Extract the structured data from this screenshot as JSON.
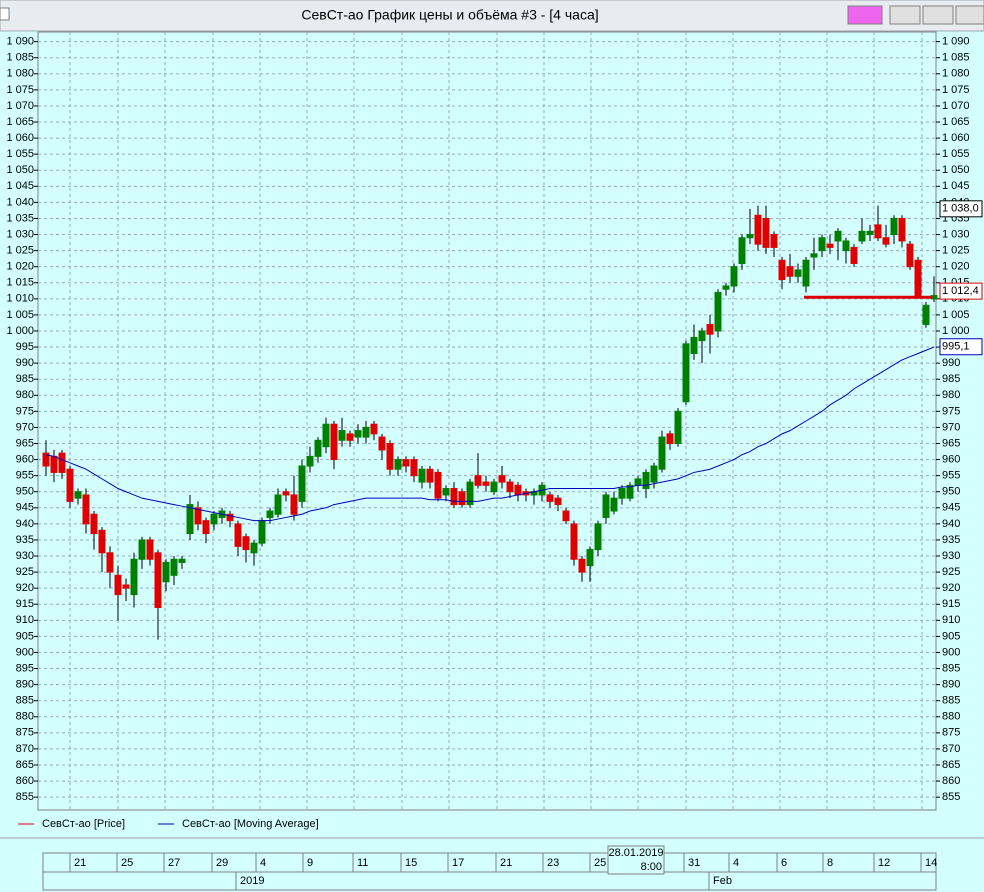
{
  "window_title": "СевСт-ао График цены и объёма #3 - [4 часа]",
  "chart_data": {
    "type": "candlestick",
    "ylim": [
      851,
      1093
    ],
    "yticks": [
      {
        "value": 1090,
        "label": "1 090"
      },
      {
        "value": 1085,
        "label": "1 085"
      },
      {
        "value": 1080,
        "label": "1 080"
      },
      {
        "value": 1075,
        "label": "1 075"
      },
      {
        "value": 1070,
        "label": "1 070"
      },
      {
        "value": 1065,
        "label": "1 065"
      },
      {
        "value": 1060,
        "label": "1 060"
      },
      {
        "value": 1055,
        "label": "1 055"
      },
      {
        "value": 1050,
        "label": "1 050"
      },
      {
        "value": 1045,
        "label": "1 045"
      },
      {
        "value": 1040,
        "label": "1 040"
      },
      {
        "value": 1035,
        "label": "1 035"
      },
      {
        "value": 1030,
        "label": "1 030"
      },
      {
        "value": 1025,
        "label": "1 025"
      },
      {
        "value": 1020,
        "label": "1 020"
      },
      {
        "value": 1015,
        "label": "1 015"
      },
      {
        "value": 1010,
        "label": "1 010"
      },
      {
        "value": 1005,
        "label": "1 005"
      },
      {
        "value": 1000,
        "label": "1 000"
      },
      995,
      990,
      985,
      980,
      975,
      970,
      965,
      960,
      955,
      950,
      945,
      940,
      935,
      930,
      925,
      920,
      915,
      910,
      905,
      900,
      895,
      890,
      885,
      880,
      875,
      870,
      865,
      860,
      855
    ],
    "grid": true,
    "series": [
      {
        "name": "СевСт-ао [Price]",
        "color": "#e00000",
        "up_color": "#008000",
        "down_color": "#e00000",
        "open": [
          962,
          961,
          962,
          957,
          948,
          949,
          943,
          938,
          931,
          924,
          921,
          918,
          929,
          935,
          931,
          922,
          924,
          928,
          937,
          945,
          941,
          940,
          942,
          943,
          940,
          936,
          931,
          934,
          942,
          943,
          950,
          949,
          947,
          958,
          961,
          964,
          971,
          966,
          968,
          967,
          967,
          971,
          967,
          965,
          957,
          960,
          960,
          953,
          957,
          956,
          949,
          951,
          950,
          946,
          955,
          953,
          950,
          955,
          953,
          952,
          950,
          949,
          949,
          949,
          948,
          944,
          940,
          929,
          927,
          932,
          942,
          944,
          948,
          948,
          952,
          951,
          953,
          957,
          968,
          965,
          978,
          993,
          997,
          1002,
          1000,
          1013,
          1014,
          1021,
          1029,
          1036,
          1035,
          1030,
          1022,
          1020,
          1017,
          1014,
          1023,
          1025,
          1027,
          1028,
          1025,
          1026,
          1028,
          1030,
          1033,
          1029,
          1030,
          1035,
          1027,
          1022,
          1002,
          1010
        ],
        "high": [
          966,
          963,
          963,
          958,
          951,
          951,
          944,
          939,
          933,
          927,
          923,
          931,
          936,
          936,
          932,
          929,
          930,
          930,
          949,
          947,
          942,
          944,
          945,
          944,
          941,
          937,
          935,
          942,
          945,
          951,
          951,
          955,
          960,
          964,
          967,
          973,
          972,
          973,
          969,
          971,
          972,
          972,
          968,
          966,
          961,
          961,
          961,
          958,
          958,
          957,
          952,
          953,
          951,
          954,
          962,
          955,
          954,
          958,
          954,
          953,
          951,
          951,
          953,
          950,
          949,
          945,
          941,
          930,
          933,
          941,
          950,
          950,
          952,
          953,
          955,
          957,
          959,
          969,
          969,
          976,
          997,
          1002,
          1001,
          1005,
          1013,
          1015,
          1021,
          1030,
          1038,
          1039,
          1039,
          1031,
          1023,
          1024,
          1021,
          1023,
          1029,
          1030,
          1030,
          1032,
          1029,
          1027,
          1035,
          1033,
          1039,
          1033,
          1036,
          1036,
          1028,
          1023,
          1009,
          1017
        ],
        "low": [
          955,
          953,
          954,
          945,
          946,
          937,
          932,
          925,
          920,
          910,
          916,
          914,
          926,
          927,
          904,
          919,
          921,
          926,
          935,
          938,
          934,
          938,
          940,
          939,
          930,
          928,
          927,
          933,
          940,
          942,
          947,
          941,
          945,
          956,
          959,
          962,
          957,
          964,
          964,
          965,
          965,
          966,
          960,
          955,
          955,
          956,
          953,
          951,
          951,
          947,
          947,
          945,
          945,
          945,
          951,
          950,
          949,
          951,
          948,
          947,
          947,
          946,
          947,
          945,
          944,
          940,
          927,
          922,
          922,
          930,
          940,
          943,
          946,
          947,
          950,
          948,
          951,
          956,
          963,
          964,
          977,
          991,
          990,
          993,
          998,
          1011,
          1012,
          1019,
          1027,
          1025,
          1024,
          1023,
          1013,
          1015,
          1015,
          1012,
          1019,
          1023,
          1024,
          1022,
          1021,
          1020,
          1027,
          1028,
          1028,
          1026,
          1027,
          1026,
          1019,
          1010,
          1001,
          1009
        ],
        "close": [
          958,
          956,
          956,
          947,
          950,
          940,
          937,
          931,
          925,
          918,
          920,
          929,
          935,
          929,
          914,
          928,
          929,
          929,
          946,
          940,
          937,
          943,
          944,
          941,
          933,
          932,
          934,
          941,
          944,
          949,
          949,
          943,
          958,
          961,
          966,
          971,
          960,
          969,
          966,
          969,
          970,
          968,
          963,
          957,
          960,
          958,
          955,
          957,
          953,
          948,
          951,
          946,
          946,
          953,
          952,
          952,
          953,
          953,
          950,
          949,
          949,
          950,
          952,
          947,
          946,
          941,
          929,
          925,
          932,
          940,
          949,
          948,
          951,
          952,
          954,
          956,
          958,
          967,
          965,
          975,
          996,
          998,
          1000,
          999,
          1012,
          1014,
          1020,
          1029,
          1030,
          1027,
          1026,
          1026,
          1016,
          1017,
          1019,
          1022,
          1024,
          1029,
          1026,
          1031,
          1028,
          1021,
          1031,
          1031,
          1029,
          1027,
          1035,
          1028,
          1020,
          1011,
          1008,
          1011
        ]
      },
      {
        "name": "СевСт-ао [Moving Average]",
        "color": "#0000c0",
        "values": [
          961.5,
          961,
          960,
          959,
          958,
          957,
          955.5,
          954,
          952.5,
          951,
          950,
          949,
          948,
          947.5,
          947,
          946.5,
          946,
          945.5,
          945,
          944.5,
          944,
          943.5,
          943,
          942.5,
          942,
          941.5,
          941,
          941,
          941,
          941.5,
          942,
          942.5,
          943,
          944,
          944.5,
          945,
          946,
          946.5,
          947,
          947.5,
          948,
          948,
          948,
          948,
          948,
          948,
          948,
          948,
          947.5,
          947.5,
          947.5,
          947,
          947,
          947,
          947,
          947.5,
          948,
          948,
          948.5,
          949,
          949.5,
          950,
          950.5,
          951,
          951,
          951,
          951,
          951,
          951,
          951,
          951,
          951,
          951.5,
          951.5,
          952,
          952,
          952.5,
          953,
          953.5,
          954,
          955,
          956,
          956.5,
          957,
          958,
          959,
          960,
          961.5,
          962.5,
          964,
          965,
          966.5,
          968,
          969,
          970.5,
          972,
          973.5,
          975,
          977,
          978.5,
          980,
          982,
          983.5,
          985,
          986.5,
          988,
          989.5,
          991,
          992,
          993,
          994,
          995
        ]
      }
    ],
    "level_line": 1010.5,
    "price_labels": [
      {
        "value": 1038.0,
        "label": "1 038,0",
        "color": "#000000"
      },
      {
        "value": 1012.4,
        "label": "1 012,4",
        "color": "#e00000"
      },
      {
        "value": 995.1,
        "label": "995,1",
        "color": "#0000c0"
      }
    ],
    "day_labels": [
      "21",
      "25",
      "27",
      "29",
      "4",
      "9",
      "11",
      "15",
      "17",
      "21",
      "23",
      "25",
      "31",
      "4",
      "6",
      "8",
      "12",
      "14"
    ],
    "month_labels": [
      "2019",
      "Feb"
    ],
    "crosshair_time": [
      "28.01.2019",
      "8:00"
    ]
  }
}
